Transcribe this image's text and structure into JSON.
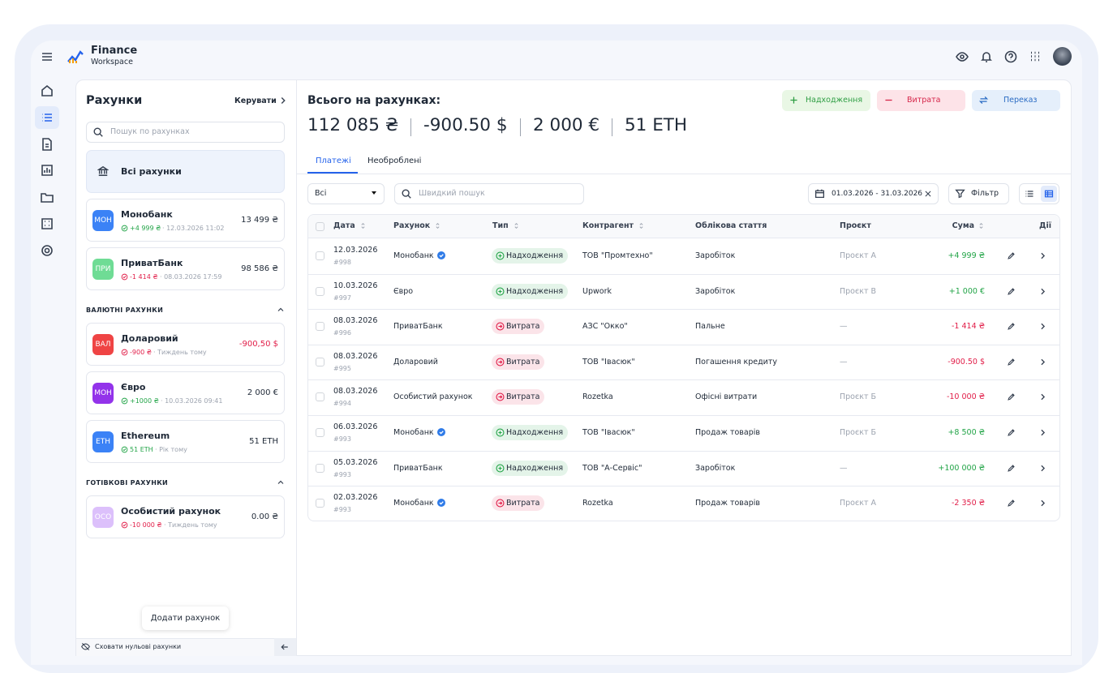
{
  "header": {
    "brand_title": "Finance",
    "brand_subtitle": "Workspace"
  },
  "accounts_panel": {
    "title": "Рахунки",
    "manage": "Керувати",
    "search_placeholder": "Пошук по рахунках",
    "all_accounts": "Всі рахунки",
    "groups": [
      {
        "title": null,
        "accounts": [
          {
            "badge": "МОН",
            "badge_color": "#3b82f6",
            "name": "Монобанк",
            "change": "+4 999 ₴",
            "change_color": "#22a447",
            "meta": "· 12.03.2026 11:02",
            "balance": "13 499 ₴",
            "balance_color": "#1f2937"
          },
          {
            "badge": "ПРИ",
            "badge_color": "#6fdc95",
            "name": "ПриватБанк",
            "change": "-1 414 ₴",
            "change_color": "#e11d48",
            "meta": "· 08.03.2026 17:59",
            "balance": "98 586 ₴",
            "balance_color": "#1f2937"
          }
        ]
      },
      {
        "title": "ВАЛЮТНІ РАХУНКИ",
        "accounts": [
          {
            "badge": "ВАЛ",
            "badge_color": "#ef4444",
            "name": "Доларовий",
            "change": "-900 ₴",
            "change_color": "#e11d48",
            "meta": "· Тиждень тому",
            "balance": "-900,50 $",
            "balance_color": "#e11d48"
          },
          {
            "badge": "МОН",
            "badge_color": "#9333ea",
            "name": "Євро",
            "change": "+1000 ₴",
            "change_color": "#22a447",
            "meta": "· 10.03.2026 09:41",
            "balance": "2 000 €",
            "balance_color": "#1f2937"
          },
          {
            "badge": "ETH",
            "badge_color": "#3b82f6",
            "name": "Ethereum",
            "change": "51 ETH",
            "change_color": "#22a447",
            "meta": "· Рік тому",
            "balance": "51 ETH",
            "balance_color": "#1f2937"
          }
        ]
      },
      {
        "title": "ГОТІВКОВІ РАХУНКИ",
        "accounts": [
          {
            "badge": "ОСО",
            "badge_color": "#dcc0fb",
            "name": "Особистий рахунок",
            "change": "-10 000 ₴",
            "change_color": "#e11d48",
            "meta": "· Тиждень тому",
            "balance": "0.00 ₴",
            "balance_color": "#1f2937"
          }
        ]
      }
    ],
    "add_account": "Додати рахунок",
    "hide_zero": "Сховати нульові рахунки"
  },
  "main": {
    "total_title": "Всього на рахунках:",
    "totals": [
      "112 085 ₴",
      "-900.50 $",
      "2 000 €",
      "51 ETH"
    ],
    "buttons": [
      {
        "label": "Надходження",
        "color": "#2f9e44",
        "bg": "#e9f7e5"
      },
      {
        "label": "Витрата",
        "color": "#d6264a",
        "bg": "#fde3e8"
      },
      {
        "label": "Переказ",
        "color": "#2b6cc4",
        "bg": "#e5effb"
      }
    ],
    "tabs": [
      "Платежі",
      "Необроблені"
    ],
    "filter_select": "Всі",
    "quick_search": "Швидкий пошук",
    "date_range": "01.03.2026 - 31.03.2026",
    "filter_button": "Фільтр",
    "table": {
      "columns": [
        "Дата",
        "Рахунок",
        "Тип",
        "Контрагент",
        "Облікова стаття",
        "Проєкт",
        "Сума",
        "Дії"
      ],
      "rows": [
        {
          "date": "12.03.2026",
          "id": "#998",
          "account": "Монобанк",
          "verified": true,
          "type": "Надходження",
          "counterparty": "ТОВ \"Промтехно\"",
          "article": "Заробіток",
          "project": "Проєкт А",
          "amount": "+4 999 ₴",
          "color": "#22a447"
        },
        {
          "date": "10.03.2026",
          "id": "#997",
          "account": "Євро",
          "verified": false,
          "type": "Надходження",
          "counterparty": "Upwork",
          "article": "Заробіток",
          "project": "Проєкт В",
          "amount": "+1 000 €",
          "color": "#22a447"
        },
        {
          "date": "08.03.2026",
          "id": "#996",
          "account": "ПриватБанк",
          "verified": false,
          "type": "Витрата",
          "counterparty": "АЗС \"Окко\"",
          "article": "Пальне",
          "project": "—",
          "amount": "-1 414 ₴",
          "color": "#e11d48"
        },
        {
          "date": "08.03.2026",
          "id": "#995",
          "account": "Доларовий",
          "verified": false,
          "type": "Витрата",
          "counterparty": "ТОВ \"Івасюк\"",
          "article": "Погашення кредиту",
          "project": "—",
          "amount": "-900.50 $",
          "color": "#e11d48"
        },
        {
          "date": "08.03.2026",
          "id": "#994",
          "account": "Особистий рахунок",
          "verified": false,
          "type": "Витрата",
          "counterparty": "Rozetka",
          "article": "Офісні витрати",
          "project": "Проєкт Б",
          "amount": "-10 000 ₴",
          "color": "#e11d48"
        },
        {
          "date": "06.03.2026",
          "id": "#993",
          "account": "Монобанк",
          "verified": true,
          "type": "Надходження",
          "counterparty": "ТОВ \"Івасюк\"",
          "article": "Продаж товарів",
          "project": "Проєкт Б",
          "amount": "+8 500 ₴",
          "color": "#22a447"
        },
        {
          "date": "05.03.2026",
          "id": "#993",
          "account": "ПриватБанк",
          "verified": false,
          "type": "Надходження",
          "counterparty": "ТОВ \"А-Сервіс\"",
          "article": "Заробіток",
          "project": "—",
          "amount": "+100 000 ₴",
          "color": "#22a447"
        },
        {
          "date": "02.03.2026",
          "id": "#993",
          "account": "Монобанк",
          "verified": true,
          "type": "Витрата",
          "counterparty": "Rozetka",
          "article": "Продаж товарів",
          "project": "Проєкт А",
          "amount": "-2 350 ₴",
          "color": "#e11d48"
        }
      ]
    }
  }
}
